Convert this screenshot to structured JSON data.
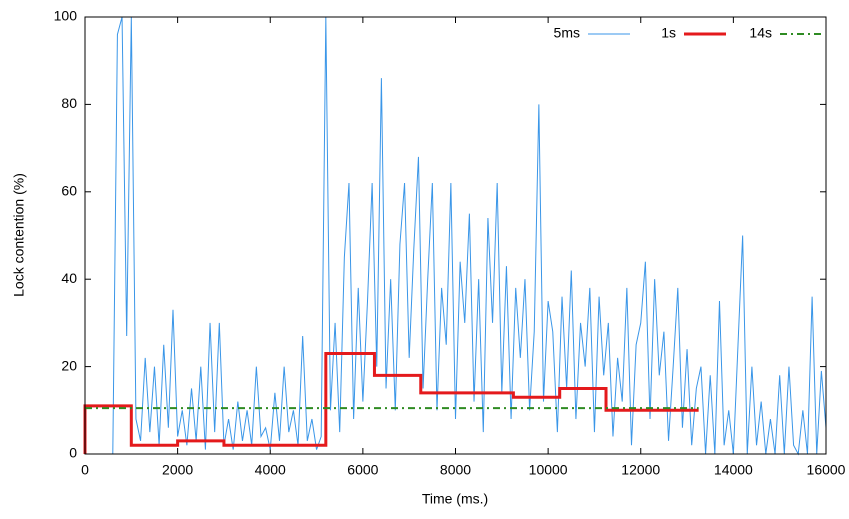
{
  "chart_data": {
    "type": "line",
    "xlabel": "Time (ms.)",
    "ylabel": "Lock contention (%)",
    "xlim": [
      0,
      16000
    ],
    "ylim": [
      0,
      100
    ],
    "xticks": [
      0,
      2000,
      4000,
      6000,
      8000,
      10000,
      12000,
      14000,
      16000
    ],
    "yticks": [
      0,
      20,
      40,
      60,
      80,
      100
    ],
    "legend": "top-right",
    "series": [
      {
        "name": "5ms",
        "color": "#3a96e8",
        "style": "solid",
        "width": 1,
        "x": [
          0,
          100,
          200,
          300,
          400,
          500,
          600,
          700,
          800,
          900,
          1000,
          1100,
          1200,
          1300,
          1400,
          1500,
          1600,
          1700,
          1800,
          1900,
          2000,
          2100,
          2200,
          2300,
          2400,
          2500,
          2600,
          2700,
          2800,
          2900,
          3000,
          3100,
          3200,
          3300,
          3400,
          3500,
          3600,
          3700,
          3800,
          3900,
          4000,
          4100,
          4200,
          4300,
          4400,
          4500,
          4600,
          4700,
          4800,
          4900,
          5000,
          5100,
          5200,
          5300,
          5400,
          5500,
          5600,
          5700,
          5800,
          5900,
          6000,
          6100,
          6200,
          6300,
          6400,
          6500,
          6600,
          6700,
          6800,
          6900,
          7000,
          7100,
          7200,
          7300,
          7400,
          7500,
          7600,
          7700,
          7800,
          7900,
          8000,
          8100,
          8200,
          8300,
          8400,
          8500,
          8600,
          8700,
          8800,
          8900,
          9000,
          9100,
          9200,
          9300,
          9400,
          9500,
          9600,
          9700,
          9800,
          9900,
          10000,
          10100,
          10200,
          10300,
          10400,
          10500,
          10600,
          10700,
          10800,
          10900,
          11000,
          11100,
          11200,
          11300,
          11400,
          11500,
          11600,
          11700,
          11800,
          11900,
          12000,
          12100,
          12200,
          12300,
          12400,
          12500,
          12600,
          12700,
          12800,
          12900,
          13000,
          13100,
          13200,
          13300,
          13400,
          13500,
          13600,
          13700,
          13800,
          13900,
          14000,
          14100,
          14200,
          14300,
          14400,
          14500,
          14600,
          14700,
          14800,
          14900,
          15000,
          15100,
          15200,
          15300,
          15400,
          15500,
          15600,
          15700,
          15800,
          15900,
          16000
        ],
        "values": [
          0,
          0,
          0,
          0,
          0,
          0,
          0,
          96,
          100,
          27,
          100,
          8,
          3,
          22,
          5,
          20,
          2,
          25,
          6,
          33,
          4,
          10,
          2,
          15,
          3,
          20,
          1,
          30,
          5,
          30,
          2,
          8,
          1,
          12,
          3,
          10,
          2,
          20,
          4,
          6,
          1,
          14,
          3,
          20,
          5,
          10,
          2,
          27,
          3,
          8,
          1,
          4,
          100,
          10,
          30,
          5,
          45,
          62,
          8,
          38,
          12,
          35,
          62,
          20,
          86,
          15,
          40,
          10,
          48,
          62,
          22,
          47,
          68,
          15,
          40,
          62,
          10,
          38,
          25,
          62,
          8,
          44,
          30,
          55,
          12,
          40,
          5,
          54,
          30,
          62,
          14,
          43,
          8,
          38,
          22,
          40,
          10,
          28,
          80,
          12,
          35,
          28,
          5,
          36,
          15,
          42,
          8,
          30,
          20,
          38,
          5,
          36,
          18,
          30,
          4,
          22,
          12,
          38,
          2,
          25,
          30,
          44,
          8,
          40,
          18,
          28,
          3,
          20,
          38,
          6,
          24,
          2,
          15,
          20,
          0,
          18,
          0,
          35,
          2,
          10,
          0,
          25,
          50,
          0,
          20,
          2,
          12,
          0,
          8,
          0,
          18,
          0,
          20,
          2,
          0,
          10,
          0,
          36,
          0,
          19,
          6
        ]
      },
      {
        "name": "1s",
        "color": "#e41a1c",
        "style": "solid",
        "width": 3,
        "x": [
          0,
          0,
          1000,
          1000,
          2000,
          2000,
          3000,
          3000,
          5200,
          5200,
          6250,
          6250,
          7250,
          7250,
          9250,
          9250,
          10250,
          10250,
          11250,
          11250,
          13250
        ],
        "values": [
          0,
          11,
          11,
          2,
          2,
          3,
          3,
          2,
          2,
          23,
          23,
          18,
          18,
          14,
          14,
          13,
          13,
          15,
          15,
          10,
          10
        ]
      },
      {
        "name": "14s",
        "color": "#2e8b22",
        "style": "dashdot",
        "width": 2,
        "x": [
          0,
          13250
        ],
        "values": [
          10.5,
          10.5
        ]
      }
    ]
  }
}
